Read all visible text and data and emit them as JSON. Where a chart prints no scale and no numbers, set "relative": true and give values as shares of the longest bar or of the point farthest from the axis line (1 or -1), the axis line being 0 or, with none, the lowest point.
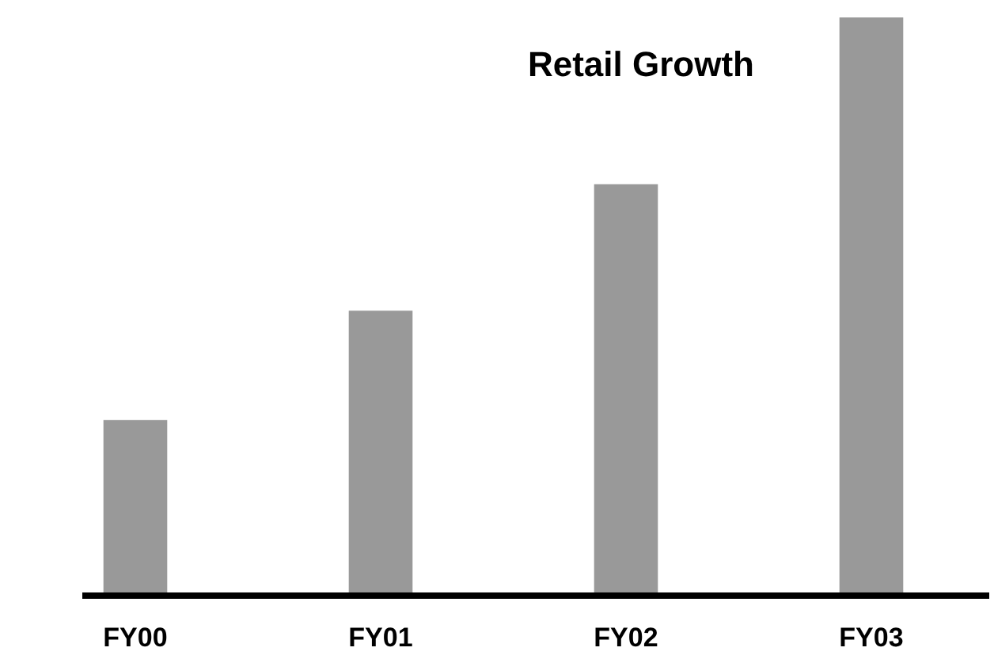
{
  "chart_data": {
    "type": "bar",
    "title": "Retail Growth",
    "relative": true,
    "categories": [
      "FY00",
      "FY01",
      "FY02",
      "FY03"
    ],
    "values": [
      0.3,
      0.49,
      0.71,
      1
    ],
    "color": "#999999"
  }
}
